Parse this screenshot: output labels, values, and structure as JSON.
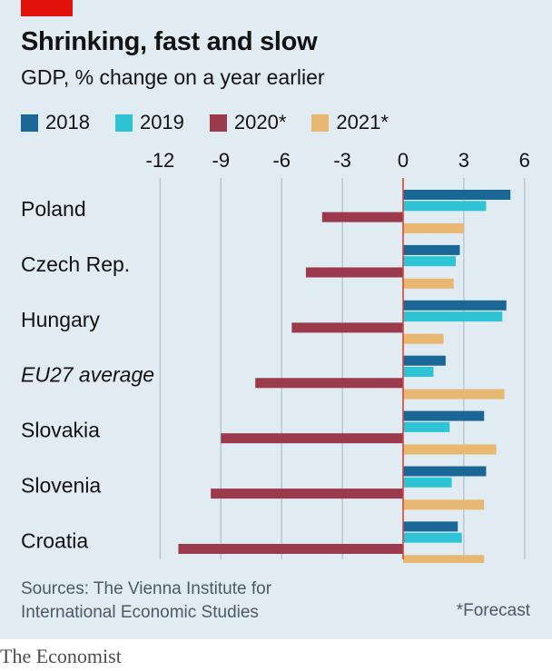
{
  "header": {
    "title": "Shrinking, fast and slow",
    "subtitle": "GDP, % change on a year earlier"
  },
  "legend": [
    {
      "label": "2018",
      "color": "#1a6696"
    },
    {
      "label": "2019",
      "color": "#2ec4d6"
    },
    {
      "label": "2020*",
      "color": "#9b3a4c"
    },
    {
      "label": "2021*",
      "color": "#e8b772"
    }
  ],
  "chart_data": {
    "type": "bar",
    "orientation": "horizontal",
    "categories": [
      "Poland",
      "Czech Rep.",
      "Hungary",
      "EU27 average",
      "Slovakia",
      "Slovenia",
      "Croatia"
    ],
    "italic_categories": [
      "EU27 average"
    ],
    "series": [
      {
        "name": "2018",
        "color": "#1a6696",
        "values": [
          5.3,
          2.8,
          5.1,
          2.1,
          4.0,
          4.1,
          2.7
        ]
      },
      {
        "name": "2019",
        "color": "#2ec4d6",
        "values": [
          4.1,
          2.6,
          4.9,
          1.5,
          2.3,
          2.4,
          2.9
        ]
      },
      {
        "name": "2020*",
        "color": "#9b3a4c",
        "values": [
          -4.0,
          -4.8,
          -5.5,
          -7.3,
          -9.0,
          -9.5,
          -11.1
        ]
      },
      {
        "name": "2021*",
        "color": "#e8b772",
        "values": [
          3.0,
          2.5,
          2.0,
          5.0,
          4.6,
          4.0,
          4.0
        ]
      }
    ],
    "xticks": [
      -12,
      -9,
      -6,
      -3,
      0,
      3,
      6
    ],
    "xlim": [
      -13,
      6.6
    ],
    "grid": true,
    "zero_line_color": "#d9453a",
    "legend_position": "top"
  },
  "footer": {
    "source_line1": "Sources: The Vienna Institute for",
    "source_line2": "International Economic Studies",
    "footnote": "*Forecast",
    "brand": "The Economist"
  }
}
